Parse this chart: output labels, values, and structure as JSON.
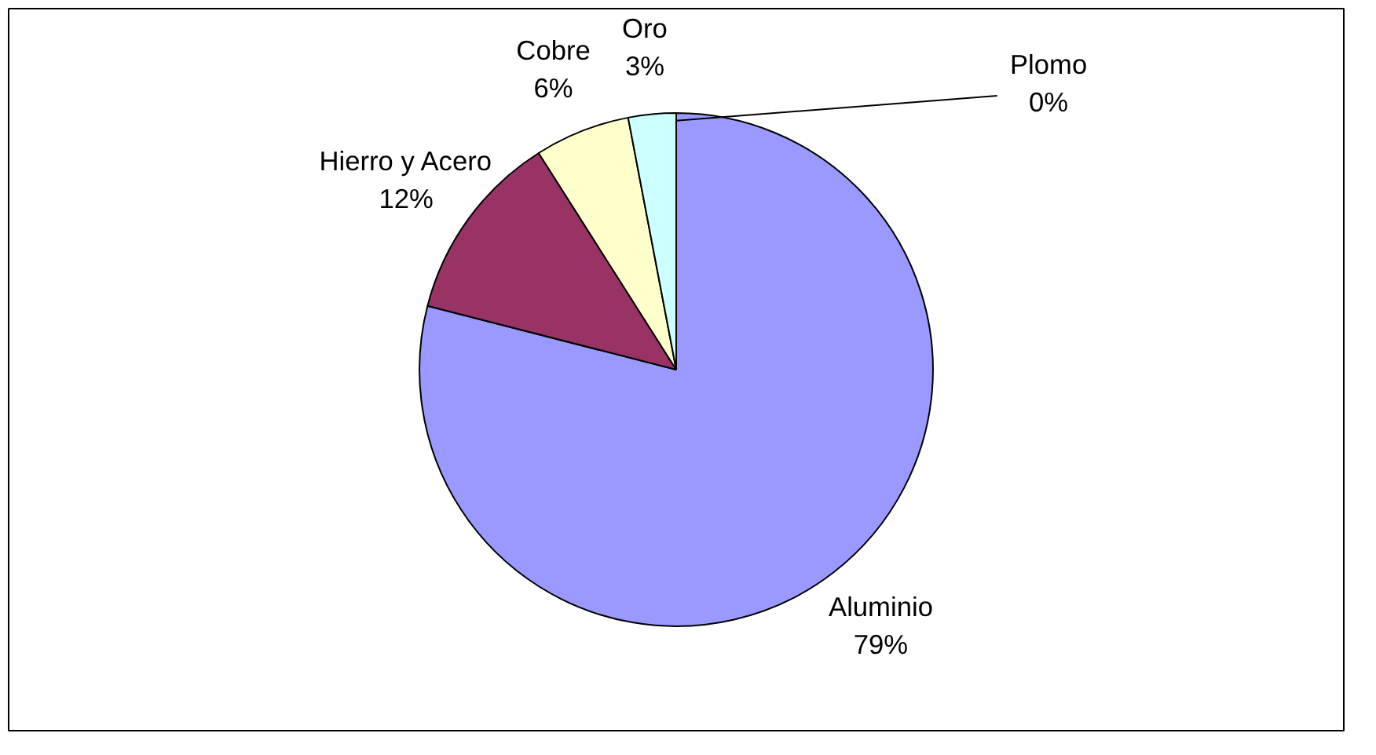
{
  "chart_data": {
    "type": "pie",
    "categories": [
      "Aluminio",
      "Hierro y Acero",
      "Cobre",
      "Oro",
      "Plomo"
    ],
    "values": [
      79,
      12,
      6,
      3,
      0
    ],
    "colors": [
      "#9999ff",
      "#993366",
      "#ffffcc",
      "#ccffff",
      "#660066"
    ],
    "value_labels": [
      "79%",
      "12%",
      "6%",
      "3%",
      "0%"
    ]
  }
}
